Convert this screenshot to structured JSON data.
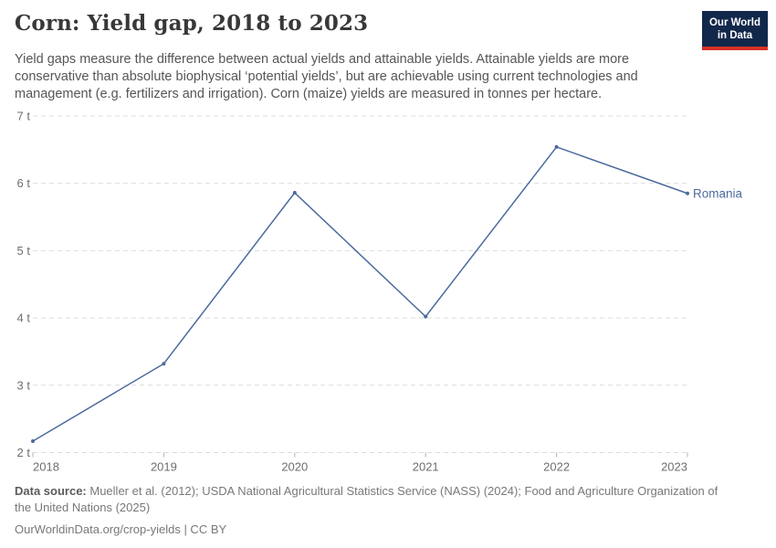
{
  "header": {
    "title": "Corn: Yield gap, 2018 to 2023",
    "subtitle": "Yield gaps measure the difference between actual yields and attainable yields. Attainable yields are more conservative than absolute biophysical ‘potential yields’, but are achievable using current technologies and management (e.g. fertilizers and irrigation). Corn (maize) yields are measured in tonnes per hectare.",
    "logo": {
      "line1": "Our World",
      "line2": "in Data",
      "bg_color": "#12284b",
      "accent_color": "#d93025"
    }
  },
  "chart_data": {
    "type": "line",
    "title": "Corn: Yield gap, 2018 to 2023",
    "x": [
      2018,
      2019,
      2020,
      2021,
      2022,
      2023
    ],
    "series": [
      {
        "name": "Romania",
        "color": "#4c6a9c",
        "values": [
          2.17,
          3.32,
          5.86,
          4.02,
          6.54,
          5.85
        ]
      }
    ],
    "ylim": [
      2,
      7
    ],
    "yticks": [
      2,
      3,
      4,
      5,
      6,
      7
    ],
    "ytick_suffix": " t",
    "xlabel": "",
    "ylabel": "",
    "grid": "horizontal-dashed",
    "legend_position": "line-end-label",
    "colors": {
      "grid": "#dcdcdc",
      "axis_tick": "#b0b0b0",
      "tick_label": "#6e6e6e"
    }
  },
  "footer": {
    "source_label": "Data source:",
    "source_text": "Mueller et al. (2012); USDA National Agricultural Statistics Service (NASS) (2024); Food and Agriculture Organization of the United Nations (2025)",
    "license_text": "OurWorldinData.org/crop-yields | CC BY"
  }
}
